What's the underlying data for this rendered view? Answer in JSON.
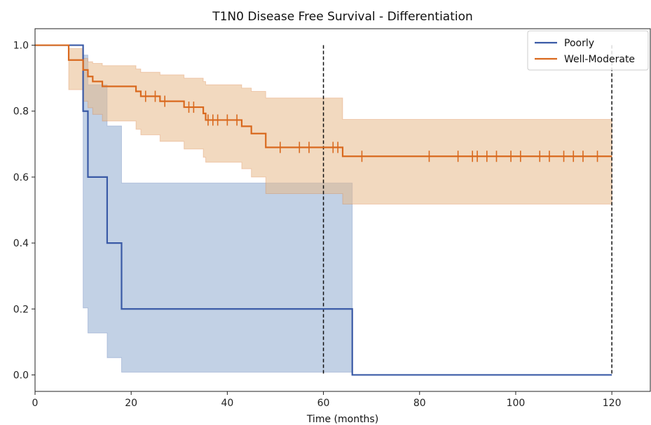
{
  "chart_data": {
    "type": "line",
    "title": "T1N0 Disease Free Survival - Differentiation",
    "xlabel": "Time (months)",
    "ylabel": "",
    "xlim": [
      0,
      128
    ],
    "ylim": [
      -0.05,
      1.05
    ],
    "xticks": [
      0,
      20,
      40,
      60,
      80,
      100,
      120
    ],
    "yticks": [
      0.0,
      0.2,
      0.4,
      0.6,
      0.8,
      1.0
    ],
    "grid": false,
    "legend_position": "top-right",
    "vlines": [
      60,
      120
    ],
    "series": [
      {
        "name": "Poorly",
        "color": "#3a5aa6",
        "ci_color": "#8fabd0",
        "steps": [
          [
            0,
            1.0
          ],
          [
            10,
            0.8
          ],
          [
            11,
            0.6
          ],
          [
            15,
            0.4
          ],
          [
            18,
            0.2
          ],
          [
            66,
            0.0
          ],
          [
            120,
            0.0
          ]
        ],
        "ci_upper": [
          [
            0,
            1.0
          ],
          [
            10,
            0.97
          ],
          [
            11,
            0.88
          ],
          [
            15,
            0.755
          ],
          [
            18,
            0.582
          ],
          [
            66,
            0.582
          ]
        ],
        "ci_lower": [
          [
            0,
            1.0
          ],
          [
            10,
            0.203
          ],
          [
            11,
            0.127
          ],
          [
            15,
            0.052
          ],
          [
            18,
            0.008
          ],
          [
            66,
            0.008
          ]
        ],
        "censor": []
      },
      {
        "name": "Well-Moderate",
        "color": "#d9691e",
        "ci_color": "#e8b98a",
        "steps": [
          [
            0,
            1.0
          ],
          [
            7,
            0.955
          ],
          [
            10,
            0.925
          ],
          [
            11,
            0.905
          ],
          [
            12,
            0.89
          ],
          [
            14,
            0.875
          ],
          [
            21,
            0.86
          ],
          [
            22,
            0.845
          ],
          [
            26,
            0.83
          ],
          [
            31,
            0.812
          ],
          [
            35,
            0.793
          ],
          [
            35.5,
            0.773
          ],
          [
            43,
            0.754
          ],
          [
            45,
            0.732
          ],
          [
            48,
            0.69
          ],
          [
            64,
            0.663
          ],
          [
            120,
            0.663
          ]
        ],
        "ci_upper": [
          [
            0,
            1.0
          ],
          [
            7,
            0.99
          ],
          [
            10,
            0.96
          ],
          [
            11,
            0.95
          ],
          [
            12,
            0.945
          ],
          [
            14,
            0.938
          ],
          [
            21,
            0.928
          ],
          [
            22,
            0.918
          ],
          [
            26,
            0.91
          ],
          [
            31,
            0.9
          ],
          [
            35,
            0.89
          ],
          [
            35.5,
            0.88
          ],
          [
            43,
            0.87
          ],
          [
            45,
            0.86
          ],
          [
            48,
            0.84
          ],
          [
            64,
            0.775
          ],
          [
            120,
            0.775
          ]
        ],
        "ci_lower": [
          [
            0,
            1.0
          ],
          [
            7,
            0.865
          ],
          [
            10,
            0.83
          ],
          [
            11,
            0.81
          ],
          [
            12,
            0.79
          ],
          [
            14,
            0.77
          ],
          [
            21,
            0.745
          ],
          [
            22,
            0.728
          ],
          [
            26,
            0.708
          ],
          [
            31,
            0.685
          ],
          [
            35,
            0.66
          ],
          [
            35.5,
            0.645
          ],
          [
            43,
            0.625
          ],
          [
            45,
            0.6
          ],
          [
            48,
            0.55
          ],
          [
            64,
            0.518
          ],
          [
            120,
            0.518
          ]
        ],
        "censor": [
          [
            23,
            0.845
          ],
          [
            25,
            0.845
          ],
          [
            27,
            0.83
          ],
          [
            32,
            0.812
          ],
          [
            33,
            0.812
          ],
          [
            36,
            0.773
          ],
          [
            37,
            0.773
          ],
          [
            38,
            0.773
          ],
          [
            40,
            0.773
          ],
          [
            42,
            0.773
          ],
          [
            51,
            0.69
          ],
          [
            55,
            0.69
          ],
          [
            57,
            0.69
          ],
          [
            62,
            0.69
          ],
          [
            63,
            0.69
          ],
          [
            68,
            0.663
          ],
          [
            82,
            0.663
          ],
          [
            88,
            0.663
          ],
          [
            91,
            0.663
          ],
          [
            92,
            0.663
          ],
          [
            94,
            0.663
          ],
          [
            96,
            0.663
          ],
          [
            99,
            0.663
          ],
          [
            101,
            0.663
          ],
          [
            105,
            0.663
          ],
          [
            107,
            0.663
          ],
          [
            110,
            0.663
          ],
          [
            112,
            0.663
          ],
          [
            114,
            0.663
          ],
          [
            117,
            0.663
          ]
        ]
      }
    ]
  }
}
